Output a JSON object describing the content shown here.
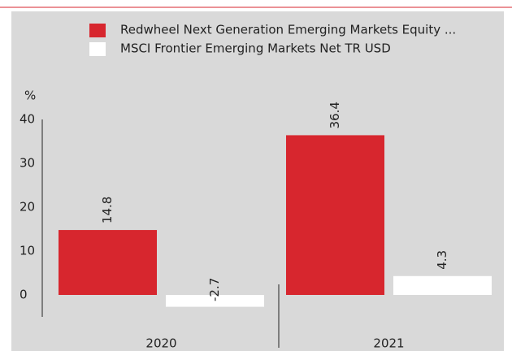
{
  "chart_data": {
    "type": "bar",
    "y_label": "%",
    "categories": [
      "2020",
      "2021"
    ],
    "series": [
      {
        "name": "Redwheel Next Generation Emerging Markets Equity ...",
        "color": "#d7262e",
        "values": [
          14.8,
          36.4
        ]
      },
      {
        "name": "MSCI Frontier Emerging Markets Net TR USD",
        "color": "#ffffff",
        "values": [
          -2.7,
          4.3
        ]
      }
    ],
    "ylim": [
      -5,
      40
    ],
    "yticks": [
      0,
      10,
      20,
      30,
      40
    ],
    "grid": false
  }
}
